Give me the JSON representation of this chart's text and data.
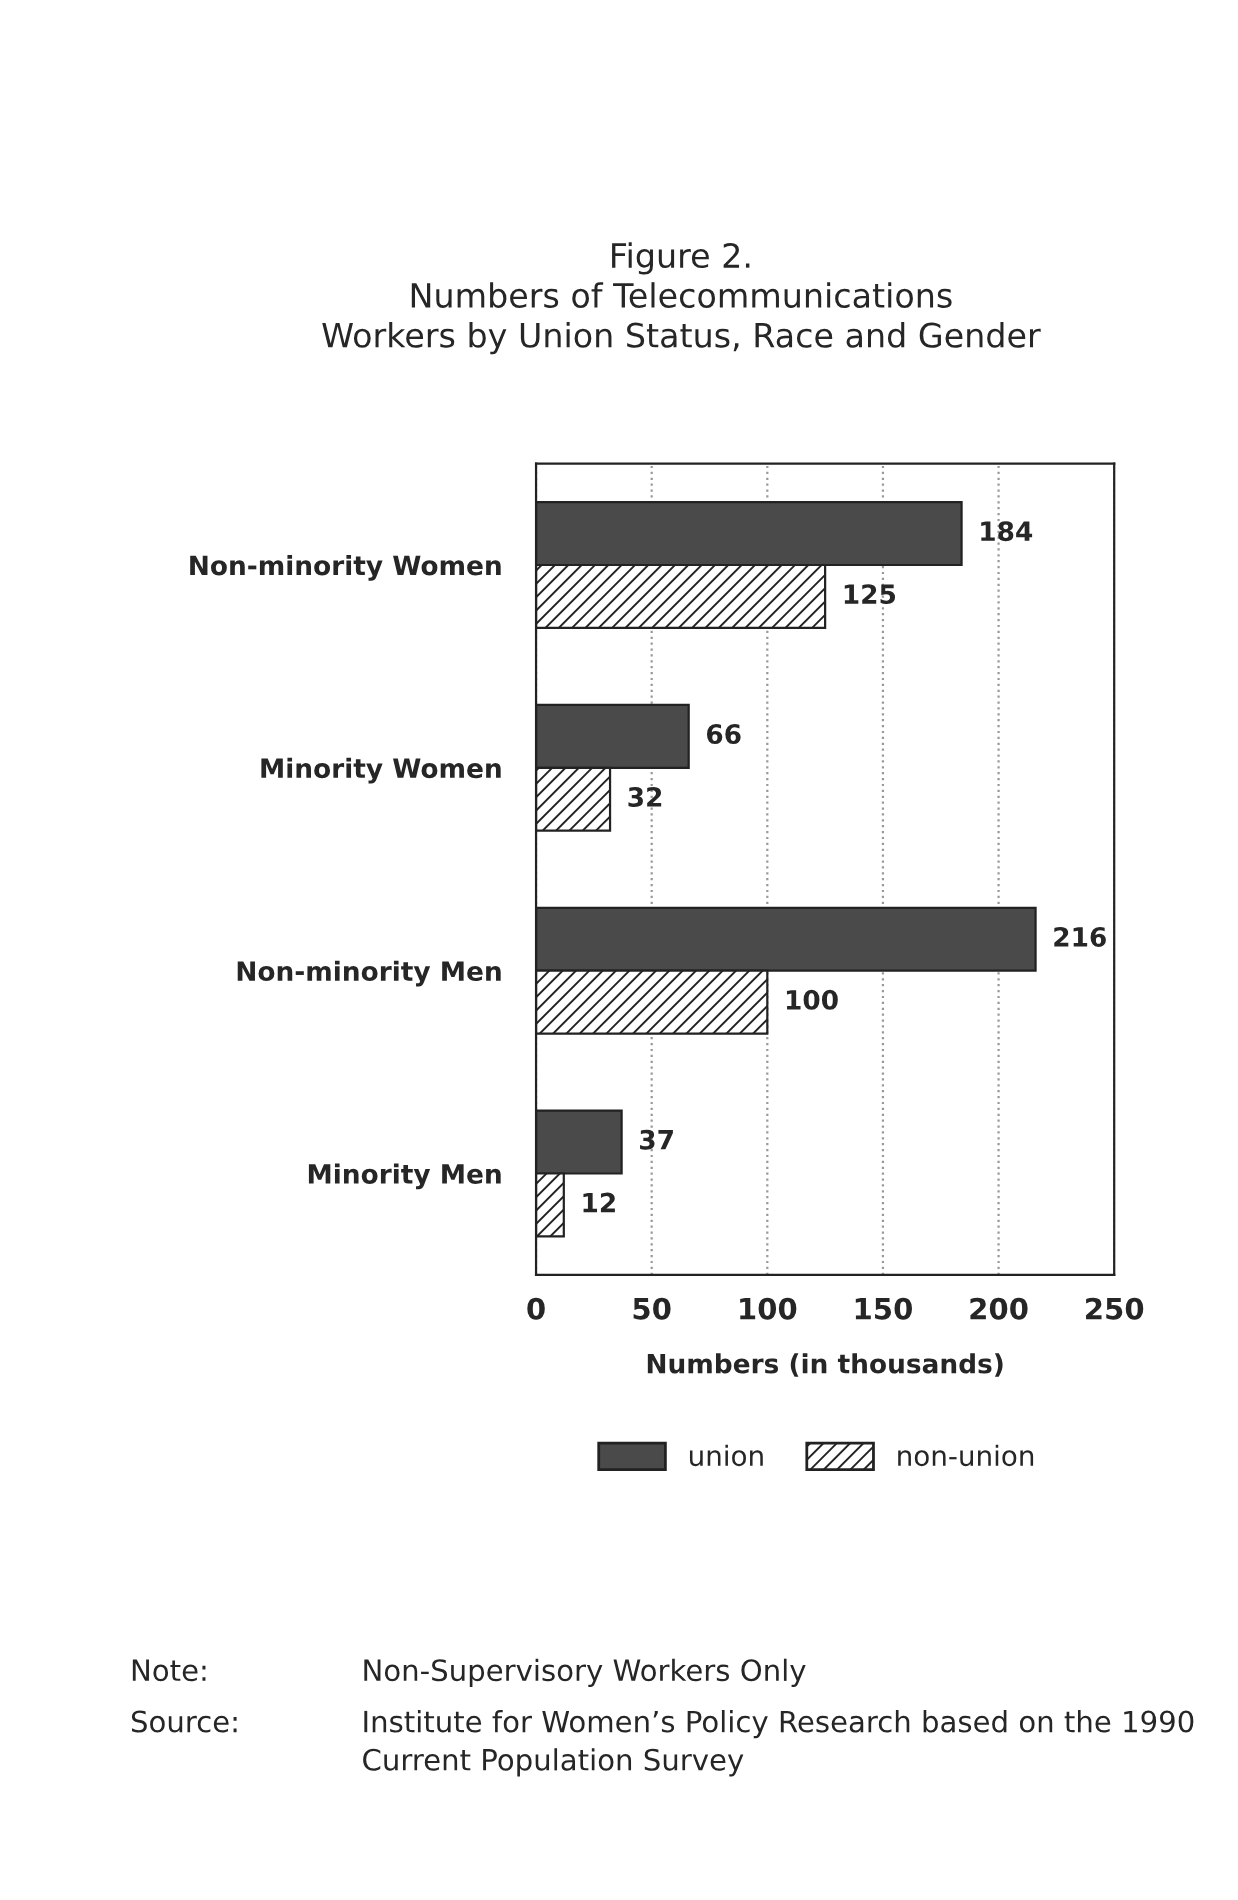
{
  "chart_data": {
    "type": "bar",
    "orientation": "horizontal",
    "title": "Figure 2.\nNumbers of Telecommunications\nWorkers by Union Status, Race and Gender",
    "xlabel": "Numbers (in thousands)",
    "categories": [
      "Non-minority Women",
      "Minority Women",
      "Non-minority Men",
      "Minority Men"
    ],
    "series": [
      {
        "name": "union",
        "color": "#4a4a4a",
        "values": [
          184,
          66,
          216,
          37
        ]
      },
      {
        "name": "non-union",
        "color": "#222222",
        "values": [
          125,
          32,
          100,
          12
        ]
      }
    ],
    "xlim": [
      0,
      250
    ],
    "xticks": [
      0,
      50,
      100,
      150,
      200,
      250
    ],
    "grid": "x",
    "data_labels": true,
    "legend": "bottom",
    "annotations": [
      "Note:",
      "Non-Supervisory Workers Only",
      "Source:",
      "Institute for Women’s Policy Research based on the 1990 Current Population Survey"
    ]
  }
}
